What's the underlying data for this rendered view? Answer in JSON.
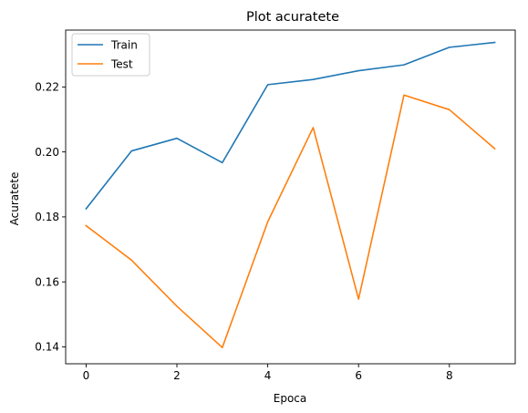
{
  "chart_data": {
    "type": "line",
    "title": "Plot acuratete",
    "xlabel": "Epoca",
    "ylabel": "Acuratete",
    "x": [
      0,
      1,
      2,
      3,
      4,
      5,
      6,
      7,
      8,
      9
    ],
    "xlim": [
      -0.45,
      9.45
    ],
    "ylim": [
      0.1348,
      0.2375
    ],
    "xticks": [
      0,
      2,
      4,
      6,
      8
    ],
    "xtick_labels": [
      "0",
      "2",
      "4",
      "6",
      "8"
    ],
    "yticks": [
      0.14,
      0.16,
      0.18,
      0.2,
      0.22
    ],
    "ytick_labels": [
      "0.14",
      "0.16",
      "0.18",
      "0.20",
      "0.22"
    ],
    "grid": false,
    "legend_position": "top-left",
    "series": [
      {
        "name": "Train",
        "color": "#1f77b4",
        "values": [
          0.1825,
          0.2003,
          0.2042,
          0.1967,
          0.2207,
          0.2223,
          0.225,
          0.2268,
          0.2322,
          0.2337
        ]
      },
      {
        "name": "Test",
        "color": "#ff7f0e",
        "values": [
          0.1773,
          0.1667,
          0.1525,
          0.1398,
          0.1785,
          0.2075,
          0.1547,
          0.2175,
          0.213,
          0.201
        ]
      }
    ]
  }
}
